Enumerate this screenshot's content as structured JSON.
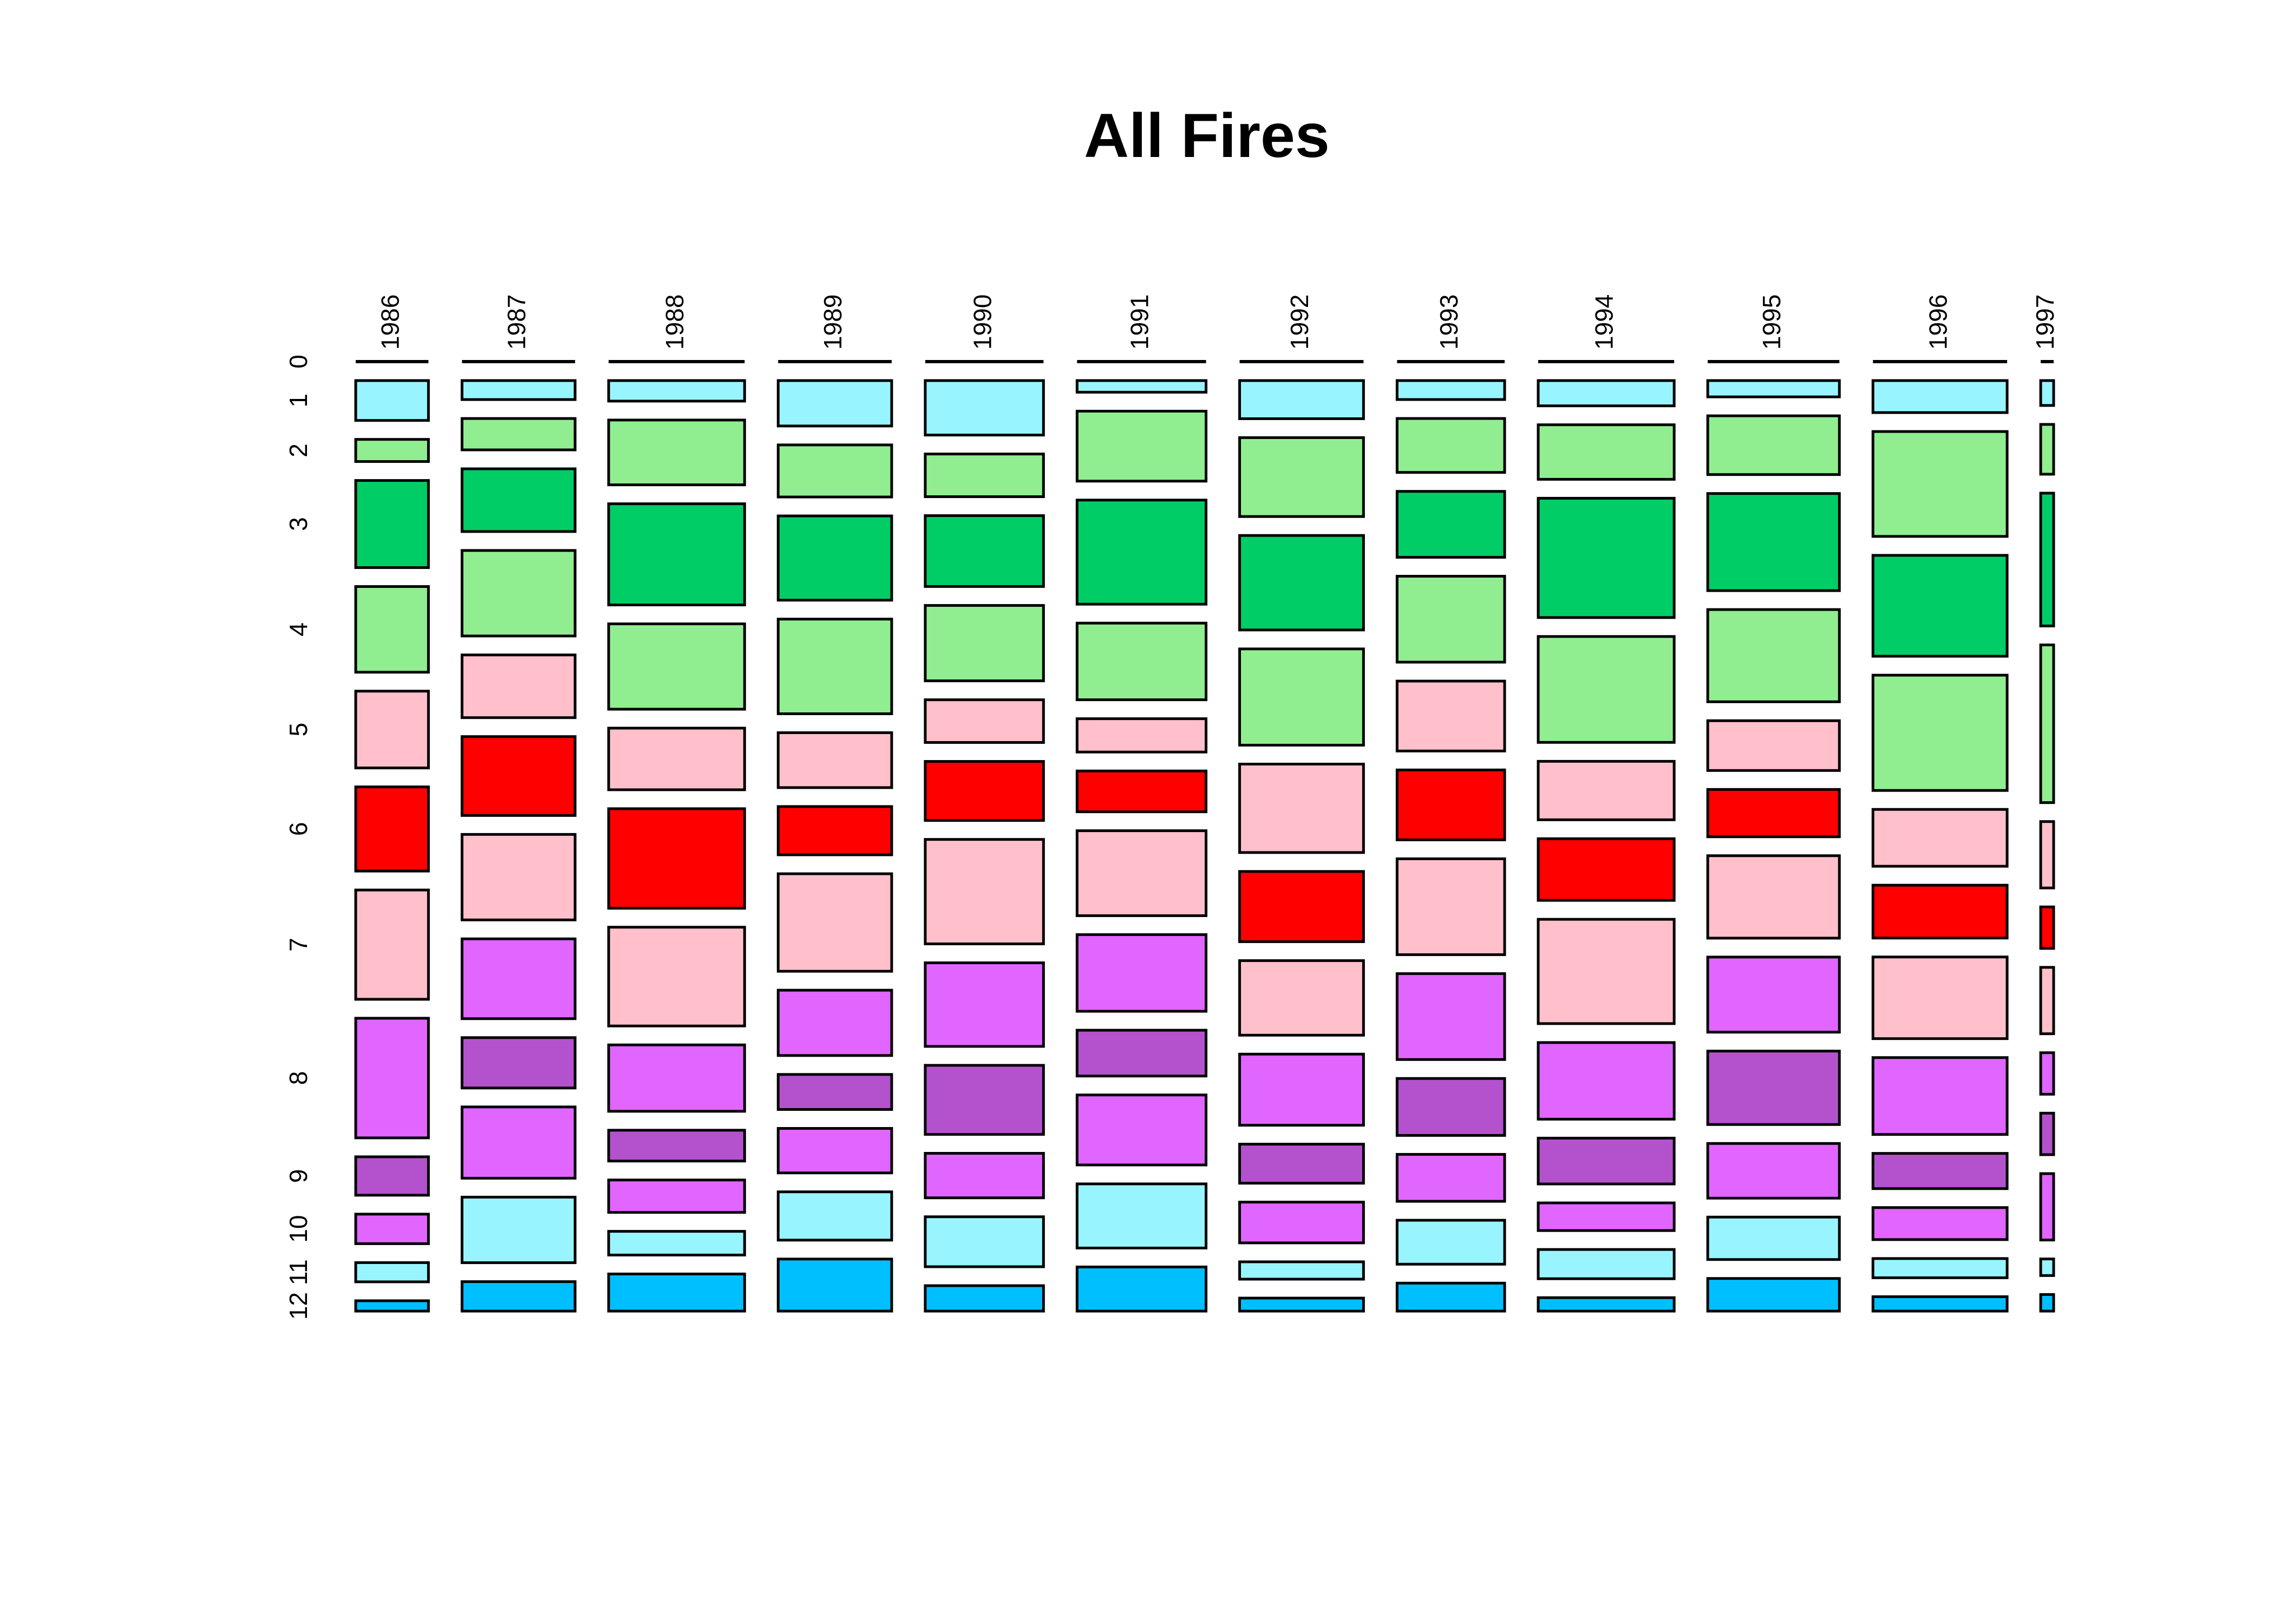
{
  "chart_data": {
    "type": "mosaic",
    "title": "All Fires",
    "categories": [
      "1986",
      "1987",
      "1988",
      "1989",
      "1990",
      "1991",
      "1992",
      "1993",
      "1994",
      "1995",
      "1996",
      "1997"
    ],
    "series": [
      {
        "name": "0",
        "values": [
          0,
          0,
          0,
          0,
          0,
          0,
          0,
          0,
          0,
          0,
          0,
          0
        ]
      },
      {
        "name": "1",
        "color": "#98F5FF",
        "values": [
          27,
          20,
          26,
          48,
          60,
          14,
          44,
          19,
          32,
          20,
          40,
          3
        ]
      },
      {
        "name": "2",
        "color": "#90EE90",
        "values": [
          15,
          33,
          82,
          55,
          47,
          84,
          91,
          54,
          69,
          72,
          131,
          6
        ]
      },
      {
        "name": "3",
        "color": "#00CD66",
        "values": [
          59,
          66,
          128,
          89,
          78,
          125,
          109,
          66,
          151,
          119,
          126,
          16
        ]
      },
      {
        "name": "4",
        "color": "#90EE90",
        "values": [
          58,
          90,
          108,
          100,
          83,
          92,
          111,
          86,
          134,
          113,
          144,
          19
        ]
      },
      {
        "name": "5",
        "color": "#FFC0CB",
        "values": [
          52,
          66,
          78,
          58,
          47,
          40,
          102,
          70,
          74,
          61,
          71,
          8
        ]
      },
      {
        "name": "6",
        "color": "#FF0000",
        "values": [
          57,
          83,
          126,
          51,
          65,
          49,
          81,
          70,
          78,
          58,
          66,
          5
        ]
      },
      {
        "name": "7",
        "color": "#FFC0CB",
        "values": [
          74,
          90,
          125,
          103,
          115,
          102,
          86,
          96,
          132,
          101,
          102,
          8
        ]
      },
      {
        "name": "8",
        "color": "#E066FF",
        "values": [
          81,
          84,
          84,
          69,
          92,
          92,
          82,
          86,
          97,
          92,
          96,
          5
        ]
      },
      {
        "name": "9",
        "color": "#B452CD",
        "values": [
          26,
          53,
          39,
          37,
          76,
          55,
          45,
          57,
          58,
          90,
          44,
          5
        ]
      },
      {
        "name": "10",
        "color": "#E066FF",
        "values": [
          20,
          75,
          41,
          47,
          49,
          84,
          47,
          47,
          35,
          67,
          40,
          8
        ]
      },
      {
        "name": "11",
        "color": "#98F5FF",
        "values": [
          13,
          69,
          30,
          51,
          55,
          77,
          20,
          44,
          37,
          52,
          24,
          2
        ]
      },
      {
        "name": "12",
        "color": "#00BFFF",
        "values": [
          7,
          31,
          47,
          55,
          28,
          53,
          15,
          28,
          17,
          40,
          18,
          2
        ]
      }
    ]
  }
}
